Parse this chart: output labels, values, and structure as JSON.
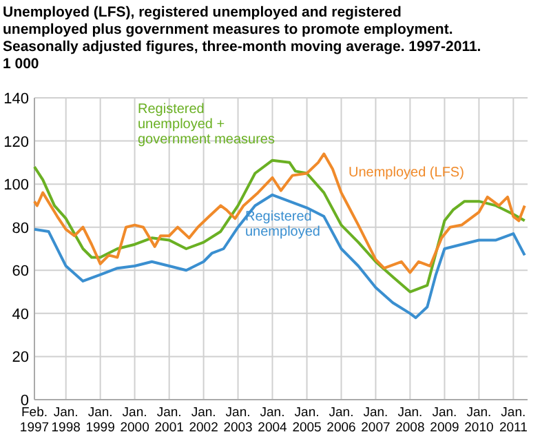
{
  "chart_data": {
    "type": "line",
    "title": "Unemployed (LFS), registered unemployed and registered unemployed plus government measures to promote employment. Seasonally adjusted figures, three-month moving average. 1997-2011. 1 000",
    "ylim": [
      0,
      140
    ],
    "yticks": [
      0,
      20,
      40,
      60,
      80,
      100,
      120,
      140
    ],
    "xlim": [
      "1997-02",
      "2011-06"
    ],
    "xticks": [
      {
        "value": "1997-02",
        "label": "Feb. 1997"
      },
      {
        "value": "1998-01",
        "label": "Jan. 1998"
      },
      {
        "value": "1999-01",
        "label": "Jan. 1999"
      },
      {
        "value": "2000-01",
        "label": "Jan. 2000"
      },
      {
        "value": "2001-01",
        "label": "Jan. 2001"
      },
      {
        "value": "2002-01",
        "label": "Jan. 2002"
      },
      {
        "value": "2003-01",
        "label": "Jan. 2003"
      },
      {
        "value": "2004-01",
        "label": "Jan. 2004"
      },
      {
        "value": "2005-01",
        "label": "Jan. 2005"
      },
      {
        "value": "2006-01",
        "label": "Jan. 2006"
      },
      {
        "value": "2007-01",
        "label": "Jan. 2007"
      },
      {
        "value": "2008-01",
        "label": "Jan. 2008"
      },
      {
        "value": "2009-01",
        "label": "Jan. 2009"
      },
      {
        "value": "2010-01",
        "label": "Jan. 2010"
      },
      {
        "value": "2011-01",
        "label": "Jan. 2011"
      }
    ],
    "grid": true,
    "legend": false,
    "marker": "none",
    "line_style": "solid",
    "series": [
      {
        "name": "Registered unemployed",
        "color": "#3a8fd0",
        "x": [
          "1997-02",
          "1997-07",
          "1998-01",
          "1998-07",
          "1999-01",
          "1999-07",
          "2000-01",
          "2000-07",
          "2001-01",
          "2001-07",
          "2002-01",
          "2002-04",
          "2002-08",
          "2003-01",
          "2003-07",
          "2004-01",
          "2005-01",
          "2005-07",
          "2006-01",
          "2006-07",
          "2007-01",
          "2007-07",
          "2008-01",
          "2008-03",
          "2008-07",
          "2008-10",
          "2009-01",
          "2009-07",
          "2010-01",
          "2010-07",
          "2011-01",
          "2011-05"
        ],
        "values": [
          79,
          78,
          62,
          55,
          58,
          61,
          62,
          64,
          62,
          60,
          64,
          68,
          70,
          80,
          90,
          95,
          89,
          85,
          70,
          62,
          52,
          45,
          40,
          38,
          43,
          58,
          70,
          72,
          74,
          74,
          77,
          67
        ]
      },
      {
        "name": "Registered unemployed + government measures",
        "color": "#6ab023",
        "x": [
          "1997-02",
          "1997-05",
          "1997-09",
          "1998-01",
          "1998-07",
          "1998-10",
          "1999-01",
          "1999-07",
          "2000-01",
          "2000-07",
          "2001-01",
          "2001-07",
          "2002-01",
          "2002-07",
          "2003-01",
          "2003-07",
          "2004-01",
          "2004-07",
          "2004-09",
          "2005-01",
          "2005-07",
          "2006-01",
          "2006-07",
          "2007-01",
          "2007-07",
          "2008-01",
          "2008-07",
          "2008-10",
          "2009-01",
          "2009-04",
          "2009-08",
          "2010-01",
          "2010-07",
          "2011-01",
          "2011-05"
        ],
        "values": [
          108,
          102,
          90,
          84,
          70,
          66,
          66,
          70,
          72,
          75,
          74,
          70,
          73,
          78,
          90,
          105,
          111,
          110,
          106,
          105,
          96,
          81,
          73,
          64,
          57,
          50,
          53,
          68,
          83,
          88,
          92,
          92,
          90,
          86,
          83
        ]
      },
      {
        "name": "Unemployed (LFS)",
        "color": "#f08a2a",
        "x": [
          "1997-02",
          "1997-03",
          "1997-05",
          "1997-10",
          "1998-01",
          "1998-04",
          "1998-07",
          "1998-10",
          "1999-01",
          "1999-04",
          "1999-07",
          "1999-10",
          "2000-01",
          "2000-04",
          "2000-08",
          "2000-10",
          "2001-01",
          "2001-04",
          "2001-08",
          "2001-11",
          "2002-03",
          "2002-07",
          "2002-09",
          "2002-12",
          "2003-03",
          "2003-08",
          "2004-01",
          "2004-04",
          "2004-08",
          "2005-01",
          "2005-05",
          "2005-07",
          "2005-10",
          "2006-01",
          "2006-07",
          "2007-01",
          "2007-04",
          "2007-10",
          "2008-01",
          "2008-04",
          "2008-08",
          "2008-12",
          "2009-03",
          "2009-07",
          "2010-01",
          "2010-04",
          "2010-08",
          "2010-11",
          "2011-01",
          "2011-03",
          "2011-05"
        ],
        "values": [
          92,
          90,
          96,
          85,
          79,
          76,
          80,
          72,
          63,
          67,
          66,
          80,
          81,
          80,
          71,
          76,
          76,
          80,
          75,
          80,
          85,
          90,
          88,
          84,
          90,
          96,
          103,
          97,
          104,
          105,
          110,
          114,
          107,
          96,
          81,
          65,
          61,
          64,
          59,
          64,
          62,
          75,
          80,
          81,
          87,
          94,
          90,
          94,
          85,
          83,
          90
        ]
      }
    ]
  }
}
